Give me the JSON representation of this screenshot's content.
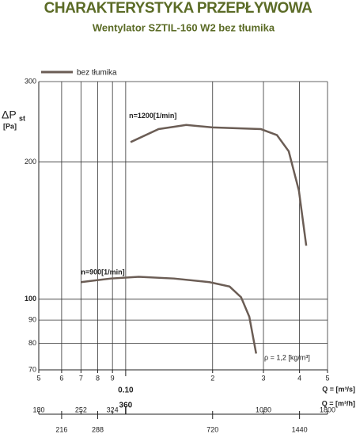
{
  "chart_data": {
    "type": "line",
    "title": "CHARAKTERYSTYKA PRZEPŁYWOWA",
    "subtitle": "Wentylator SZTIL-160 W2 bez tłumika",
    "y_label_main": "ΔP",
    "y_label_sub": "st",
    "y_unit": "[Pa]",
    "x_label": "Q = [m³/s]",
    "x2_label": "Q = [m³/h]",
    "annotation": "ρ = 1,2 [kg/m³]",
    "legend_label": "bez tłumika",
    "log_x": true,
    "log_y": true,
    "grid": true,
    "xlim": [
      0.05,
      0.5
    ],
    "xticks": [
      {
        "value": 0.05,
        "label": "5"
      },
      {
        "value": 0.06,
        "label": "6"
      },
      {
        "value": 0.07,
        "label": "7"
      },
      {
        "value": 0.08,
        "label": "8"
      },
      {
        "value": 0.09,
        "label": "9"
      },
      {
        "value": 0.1,
        "label": "0.10"
      },
      {
        "value": 0.2,
        "label": "2"
      },
      {
        "value": 0.3,
        "label": "3"
      },
      {
        "value": 0.4,
        "label": "4"
      },
      {
        "value": 0.5,
        "label": "5"
      }
    ],
    "x2lim": [
      180,
      1800
    ],
    "x2ticks": [
      180,
      216,
      252,
      288,
      324,
      360,
      720,
      1080,
      1440,
      1800
    ],
    "ylim": [
      70,
      300
    ],
    "yticks": [
      70,
      80,
      90,
      100,
      200,
      300
    ],
    "series": [
      {
        "name": "n=1200[1/min]",
        "color": "#6b5d55",
        "x": [
          0.104,
          0.13,
          0.162,
          0.2,
          0.294,
          0.334,
          0.367,
          0.398,
          0.422
        ],
        "values": [
          221,
          236,
          241,
          238,
          236,
          229,
          211,
          173,
          131
        ]
      },
      {
        "name": "n=900[1/min]",
        "color": "#6b5d55",
        "x": [
          0.07,
          0.0888,
          0.111,
          0.147,
          0.195,
          0.229,
          0.251,
          0.268,
          0.283
        ],
        "values": [
          109,
          111,
          112,
          111,
          109,
          106.6,
          101,
          91.5,
          76
        ]
      }
    ]
  }
}
